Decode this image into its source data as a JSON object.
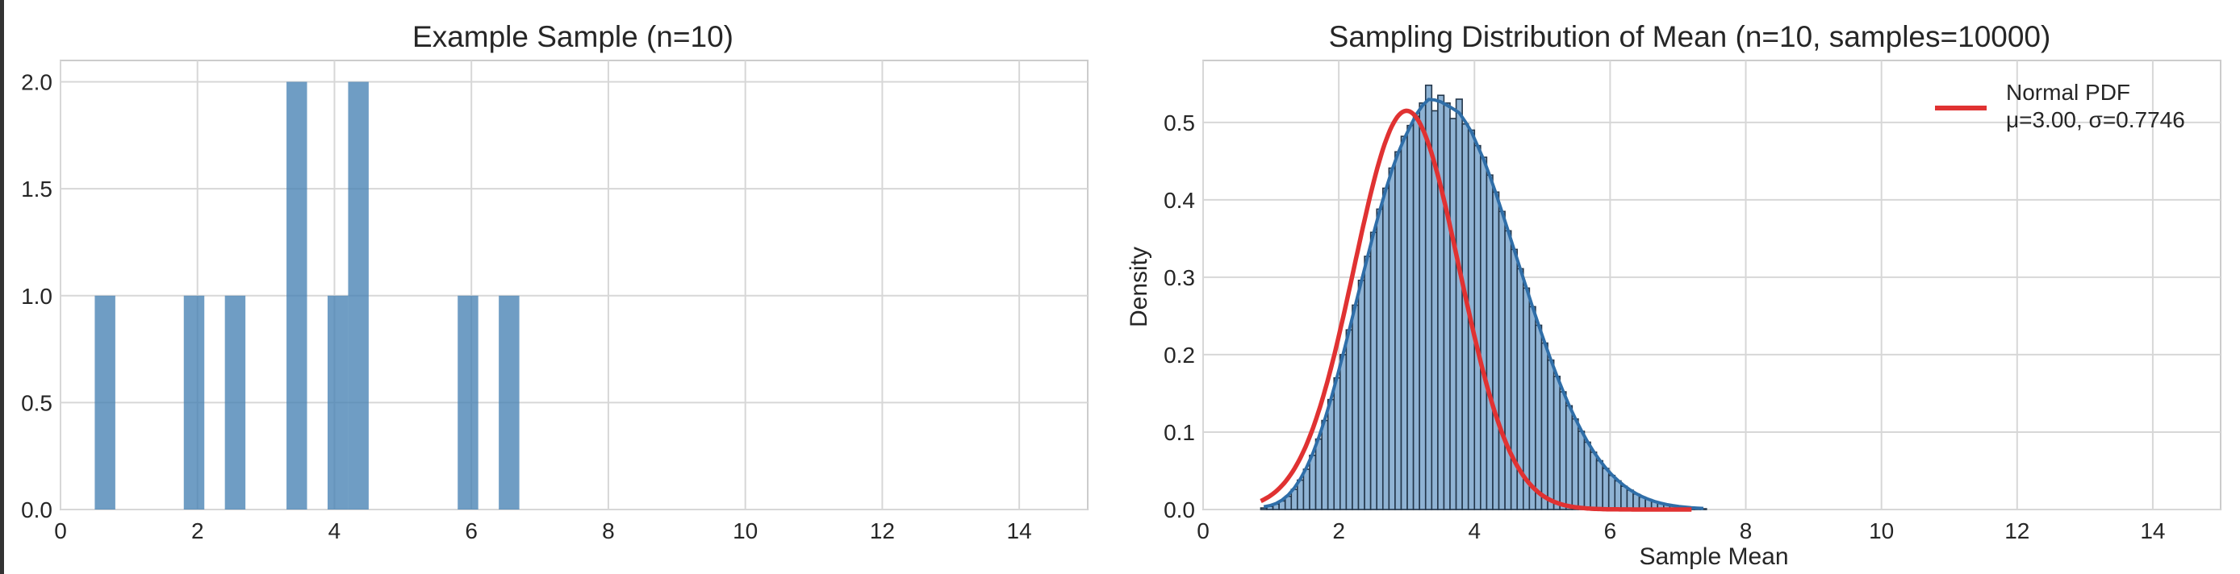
{
  "colors": {
    "bar": "#4682b4",
    "kde": "#2f6ea8",
    "normal": "#e03232",
    "grid": "#d7d7d7",
    "frame": "#cccccc",
    "left_edge": "#333333"
  },
  "chart_data": [
    {
      "type": "bar",
      "chart_kind": "histogram",
      "title": "Example Sample (n=10)",
      "xlabel": "",
      "ylabel": "",
      "xlim": [
        0,
        15
      ],
      "ylim": [
        0,
        2.1
      ],
      "xticks": [
        0,
        2,
        4,
        6,
        8,
        10,
        12,
        14
      ],
      "yticks": [
        0.0,
        0.5,
        1.0,
        1.5,
        2.0
      ],
      "xtick_labels": [
        "0",
        "2",
        "4",
        "6",
        "8",
        "10",
        "12",
        "14"
      ],
      "ytick_labels": [
        "0.0",
        "0.5",
        "1.0",
        "1.5",
        "2.0"
      ],
      "grid": true,
      "bin_width": 0.3,
      "bins": [
        {
          "x0": 0.5,
          "count": 1
        },
        {
          "x0": 1.8,
          "count": 1
        },
        {
          "x0": 2.4,
          "count": 1
        },
        {
          "x0": 3.3,
          "count": 2
        },
        {
          "x0": 3.9,
          "count": 1
        },
        {
          "x0": 4.2,
          "count": 2
        },
        {
          "x0": 5.8,
          "count": 1
        },
        {
          "x0": 6.4,
          "count": 1
        }
      ]
    },
    {
      "type": "bar",
      "chart_kind": "histogram_with_kde_and_normal",
      "title": "Sampling Distribution of Mean (n=10, samples=10000)",
      "xlabel": "Sample Mean",
      "ylabel": "Density",
      "xlim": [
        0,
        15
      ],
      "ylim": [
        0,
        0.58
      ],
      "xticks": [
        0,
        2,
        4,
        6,
        8,
        10,
        12,
        14
      ],
      "yticks": [
        0.0,
        0.1,
        0.2,
        0.3,
        0.4,
        0.5
      ],
      "xtick_labels": [
        "0",
        "2",
        "4",
        "6",
        "8",
        "10",
        "12",
        "14"
      ],
      "ytick_labels": [
        "0.0",
        "0.1",
        "0.2",
        "0.3",
        "0.4",
        "0.5"
      ],
      "grid": true,
      "legend_position": "top-right",
      "bin_start": 0.85,
      "bin_width": 0.09,
      "densities": [
        0.002,
        0.004,
        0.007,
        0.011,
        0.017,
        0.026,
        0.038,
        0.052,
        0.07,
        0.091,
        0.115,
        0.142,
        0.17,
        0.2,
        0.232,
        0.264,
        0.296,
        0.327,
        0.358,
        0.388,
        0.415,
        0.441,
        0.462,
        0.482,
        0.496,
        0.508,
        0.525,
        0.548,
        0.515,
        0.535,
        0.525,
        0.505,
        0.53,
        0.498,
        0.49,
        0.47,
        0.455,
        0.432,
        0.41,
        0.385,
        0.36,
        0.336,
        0.311,
        0.286,
        0.262,
        0.238,
        0.215,
        0.193,
        0.172,
        0.152,
        0.134,
        0.117,
        0.101,
        0.087,
        0.074,
        0.063,
        0.053,
        0.044,
        0.037,
        0.03,
        0.025,
        0.02,
        0.016,
        0.013,
        0.01,
        0.008,
        0.006,
        0.005,
        0.004,
        0.003,
        0.002,
        0.002,
        0.001
      ],
      "series": [
        {
          "name": "Normal PDF\nμ=3.00, σ=0.7746",
          "kind": "normal_pdf",
          "mu": 3.0,
          "sigma": 0.7746,
          "x_range": [
            0.85,
            7.2
          ]
        }
      ],
      "legend": {
        "line1": "Normal PDF",
        "line2": "μ=3.00, σ=0.7746"
      }
    }
  ]
}
